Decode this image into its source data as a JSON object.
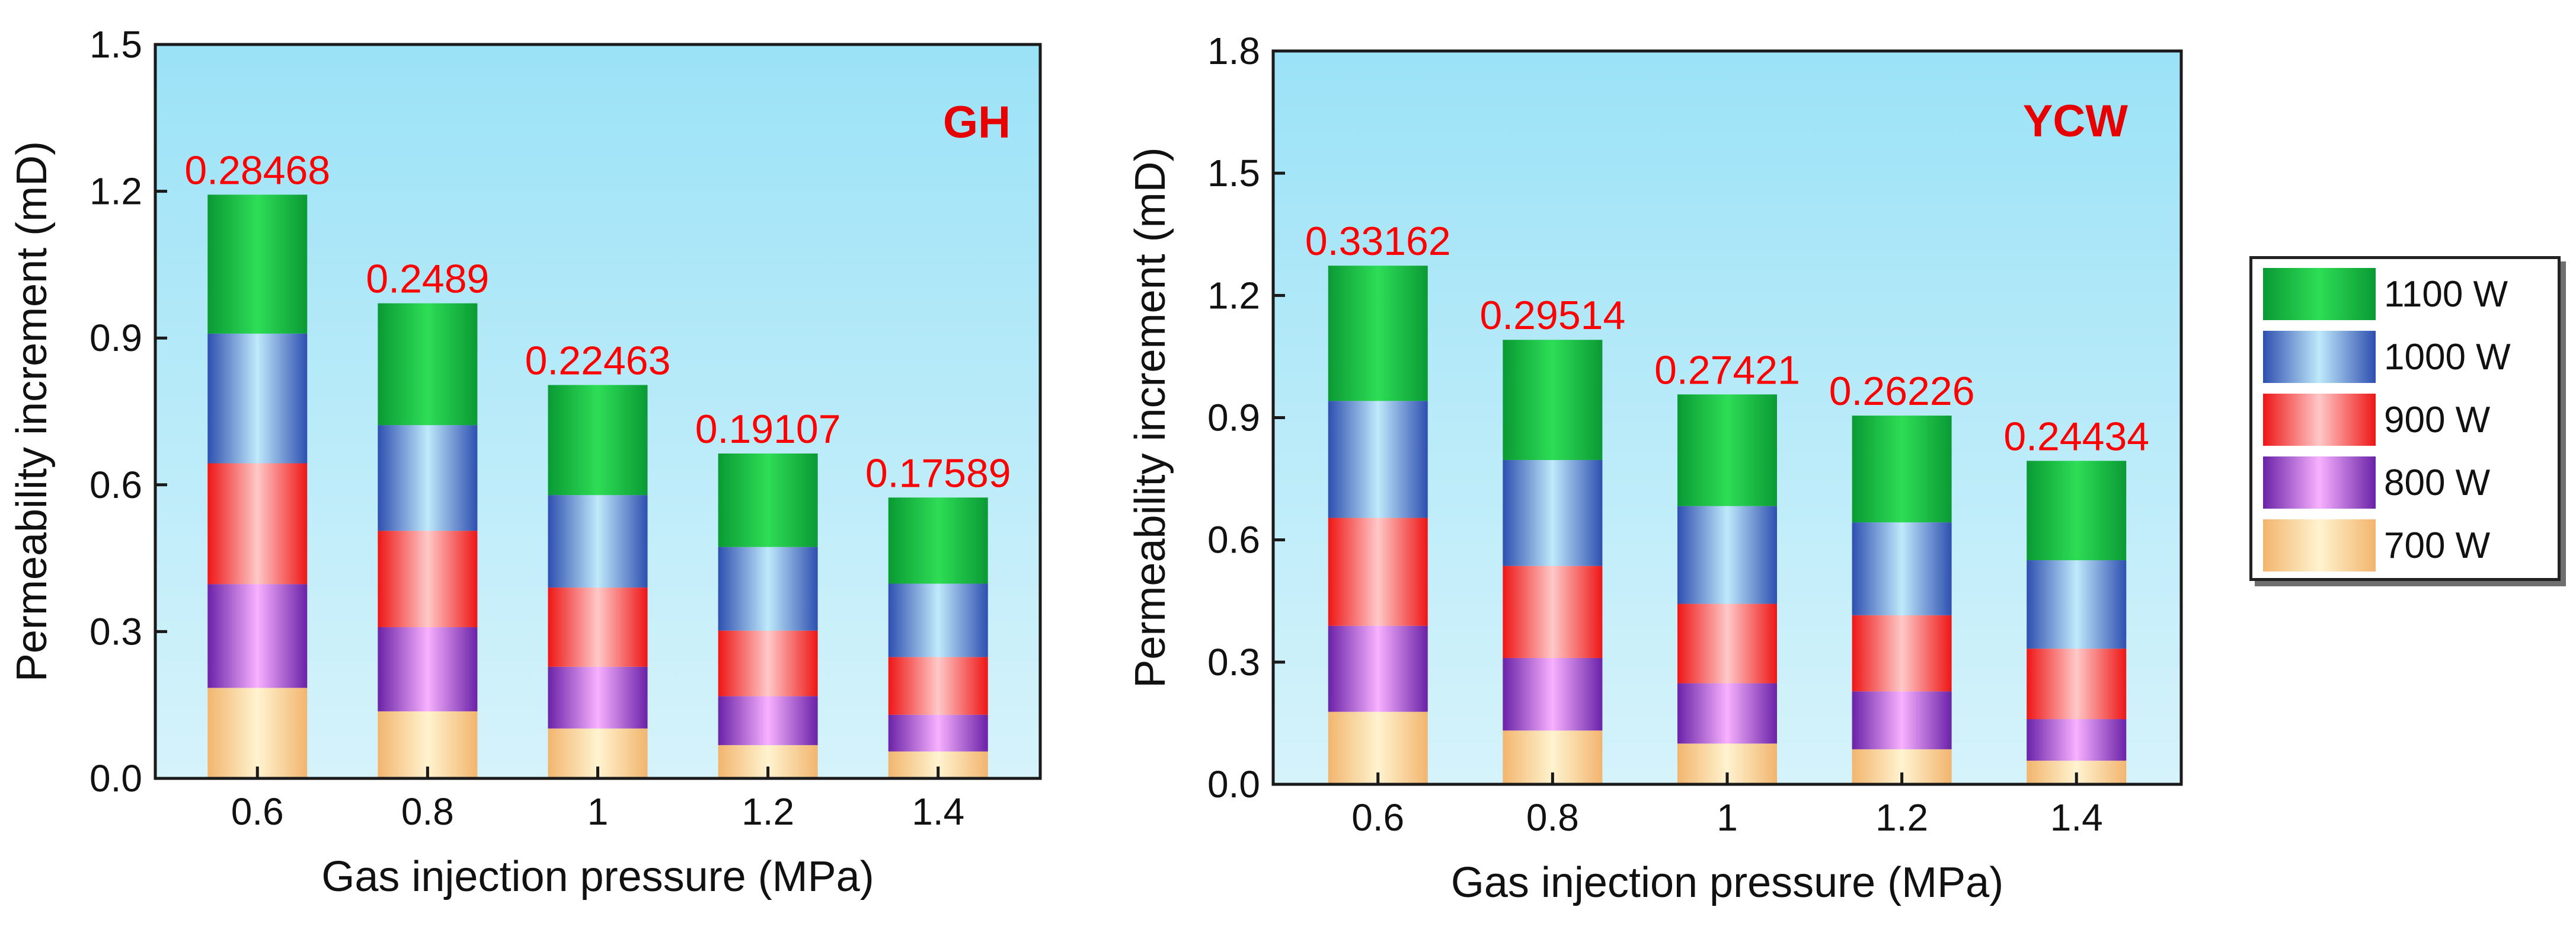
{
  "colors": {
    "700 W": {
      "light": "#fff3d0",
      "dark": "#f2b56e"
    },
    "800 W": {
      "light": "#f8b0ff",
      "dark": "#6a22a8"
    },
    "900 W": {
      "light": "#ffc8c8",
      "dark": "#ee1616"
    },
    "1000 W": {
      "light": "#bfe9fb",
      "dark": "#2f4fb0"
    },
    "1100 W": {
      "light": "#2edd56",
      "dark": "#0a9a34"
    },
    "annotation": "#ff0000",
    "panel_label": "#e60000",
    "background_top": "#d6f3fb",
    "background_bottom": "#9be2f7"
  },
  "legend": {
    "items": [
      "1100 W",
      "1000 W",
      "900 W",
      "800 W",
      "700 W"
    ],
    "placement": "right"
  },
  "chart_data": [
    {
      "type": "bar",
      "stacked": true,
      "panel_label": "GH",
      "categories": [
        "0.6",
        "0.8",
        "1",
        "1.2",
        "1.4"
      ],
      "xlabel": "Gas injection pressure (MPa)",
      "ylabel": "Permeability increment (mD)",
      "ylim": [
        0,
        1.5
      ],
      "yticks": [
        "0.0",
        "0.3",
        "0.6",
        "0.9",
        "1.2",
        "1.5"
      ],
      "series": [
        {
          "name": "700 W",
          "values": [
            0.185,
            0.137,
            0.102,
            0.068,
            0.055
          ]
        },
        {
          "name": "800 W",
          "values": [
            0.212,
            0.172,
            0.126,
            0.1,
            0.075
          ]
        },
        {
          "name": "900 W",
          "values": [
            0.247,
            0.197,
            0.162,
            0.134,
            0.118
          ]
        },
        {
          "name": "1000 W",
          "values": [
            0.265,
            0.216,
            0.189,
            0.171,
            0.15
          ]
        },
        {
          "name": "1100 W",
          "values": [
            0.284,
            0.249,
            0.225,
            0.191,
            0.176
          ]
        }
      ],
      "annotations": [
        "0.28468",
        "0.2489",
        "0.22463",
        "0.19107",
        "0.17589"
      ]
    },
    {
      "type": "bar",
      "stacked": true,
      "panel_label": "YCW",
      "categories": [
        "0.6",
        "0.8",
        "1",
        "1.2",
        "1.4"
      ],
      "xlabel": "Gas injection pressure (MPa)",
      "ylabel": "Permeability increment (mD)",
      "ylim": [
        0,
        1.8
      ],
      "yticks": [
        "0.0",
        "0.3",
        "0.6",
        "0.9",
        "1.2",
        "1.5",
        "1.8"
      ],
      "series": [
        {
          "name": "700 W",
          "values": [
            0.178,
            0.132,
            0.1,
            0.086,
            0.058
          ]
        },
        {
          "name": "800 W",
          "values": [
            0.211,
            0.178,
            0.148,
            0.142,
            0.102
          ]
        },
        {
          "name": "900 W",
          "values": [
            0.265,
            0.226,
            0.195,
            0.187,
            0.173
          ]
        },
        {
          "name": "1000 W",
          "values": [
            0.287,
            0.26,
            0.24,
            0.228,
            0.217
          ]
        },
        {
          "name": "1100 W",
          "values": [
            0.332,
            0.295,
            0.274,
            0.262,
            0.244
          ]
        }
      ],
      "annotations": [
        "0.33162",
        "0.29514",
        "0.27421",
        "0.26226",
        "0.24434"
      ]
    }
  ]
}
